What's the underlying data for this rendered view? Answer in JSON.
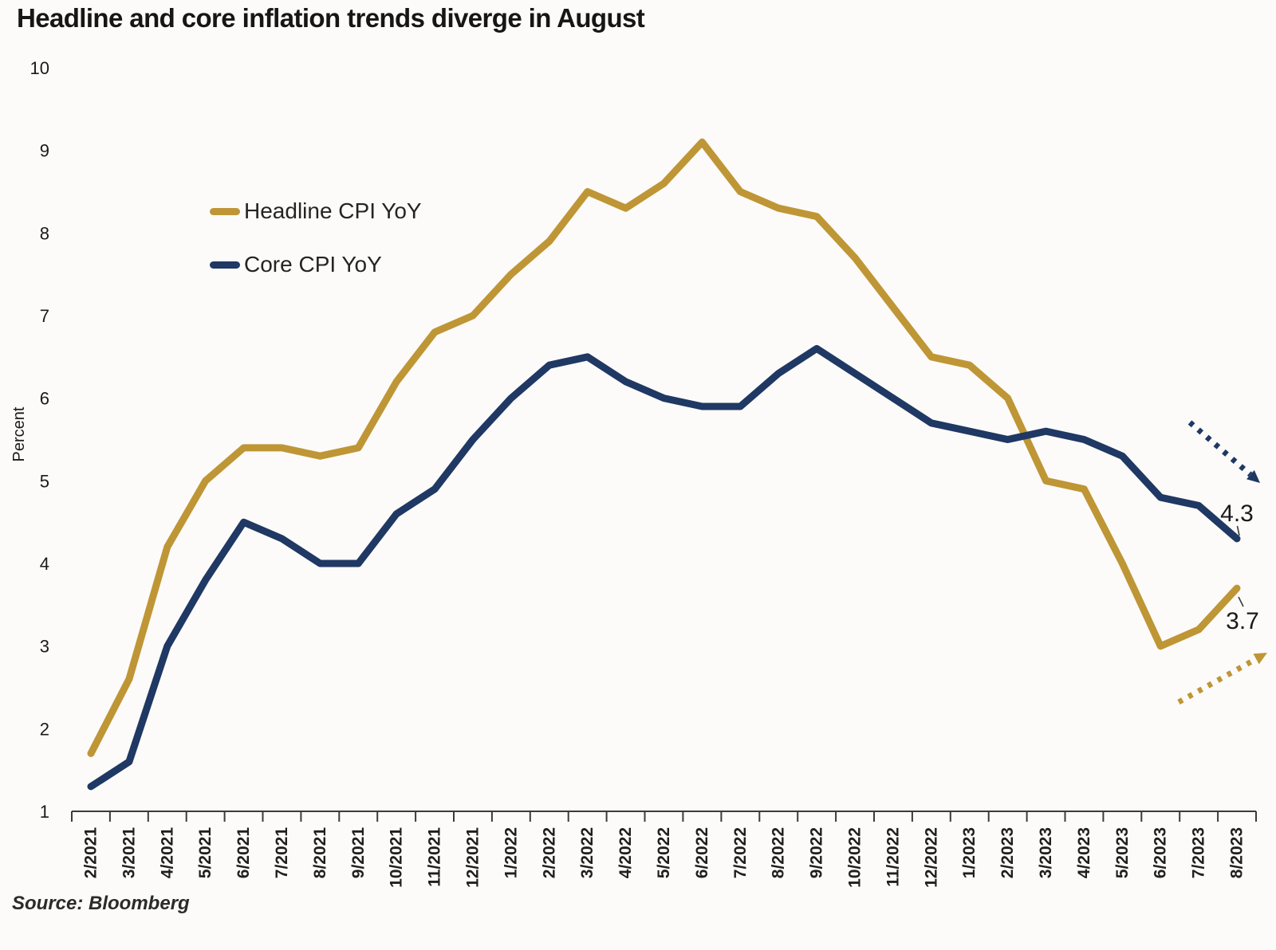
{
  "title": "Headline and core inflation trends diverge in August",
  "source_note": "Source: Bloomberg",
  "colors": {
    "headline": "#BF9636",
    "core": "#1F3864",
    "axis": "#3b3b3b",
    "text": "#1a1a1a"
  },
  "chart_data": {
    "type": "line",
    "title": "Headline and core inflation trends diverge in August",
    "ylabel": "Percent",
    "ylim": [
      1,
      10
    ],
    "yticks": [
      1,
      2,
      3,
      4,
      5,
      6,
      7,
      8,
      9,
      10
    ],
    "grid": false,
    "legend_position": "inside-upper-left",
    "x": [
      "2/2021",
      "3/2021",
      "4/2021",
      "5/2021",
      "6/2021",
      "7/2021",
      "8/2021",
      "9/2021",
      "10/2021",
      "11/2021",
      "12/2021",
      "1/2022",
      "2/2022",
      "3/2022",
      "4/2022",
      "5/2022",
      "6/2022",
      "7/2022",
      "8/2022",
      "9/2022",
      "10/2022",
      "11/2022",
      "12/2022",
      "1/2023",
      "2/2023",
      "3/2023",
      "4/2023",
      "5/2023",
      "6/2023",
      "7/2023",
      "8/2023"
    ],
    "series": [
      {
        "name": "Headline CPI YoY",
        "color": "#BF9636",
        "values": [
          1.7,
          2.6,
          4.2,
          5.0,
          5.4,
          5.4,
          5.3,
          5.4,
          6.2,
          6.8,
          7.0,
          7.5,
          7.9,
          8.5,
          8.3,
          8.6,
          9.1,
          8.5,
          8.3,
          8.2,
          7.7,
          7.1,
          6.5,
          6.4,
          6.0,
          5.0,
          4.9,
          4.0,
          3.0,
          3.2,
          3.7
        ]
      },
      {
        "name": "Core CPI YoY",
        "color": "#1F3864",
        "values": [
          1.3,
          1.6,
          3.0,
          3.8,
          4.5,
          4.3,
          4.0,
          4.0,
          4.6,
          4.9,
          5.5,
          6.0,
          6.4,
          6.5,
          6.2,
          6.0,
          5.9,
          5.9,
          6.3,
          6.6,
          6.3,
          6.0,
          5.7,
          5.6,
          5.5,
          5.6,
          5.5,
          5.3,
          4.8,
          4.7,
          4.3
        ]
      }
    ],
    "annotations": [
      {
        "text": "4.3",
        "series": "Core CPI YoY",
        "x": "8/2023",
        "value": 4.3
      },
      {
        "text": "3.7",
        "series": "Headline CPI YoY",
        "x": "8/2023",
        "value": 3.7
      }
    ],
    "trend_arrows": [
      {
        "series": "Core CPI YoY",
        "color": "#1F3864",
        "direction": "down-right"
      },
      {
        "series": "Headline CPI YoY",
        "color": "#BF9636",
        "direction": "up-right"
      }
    ]
  }
}
